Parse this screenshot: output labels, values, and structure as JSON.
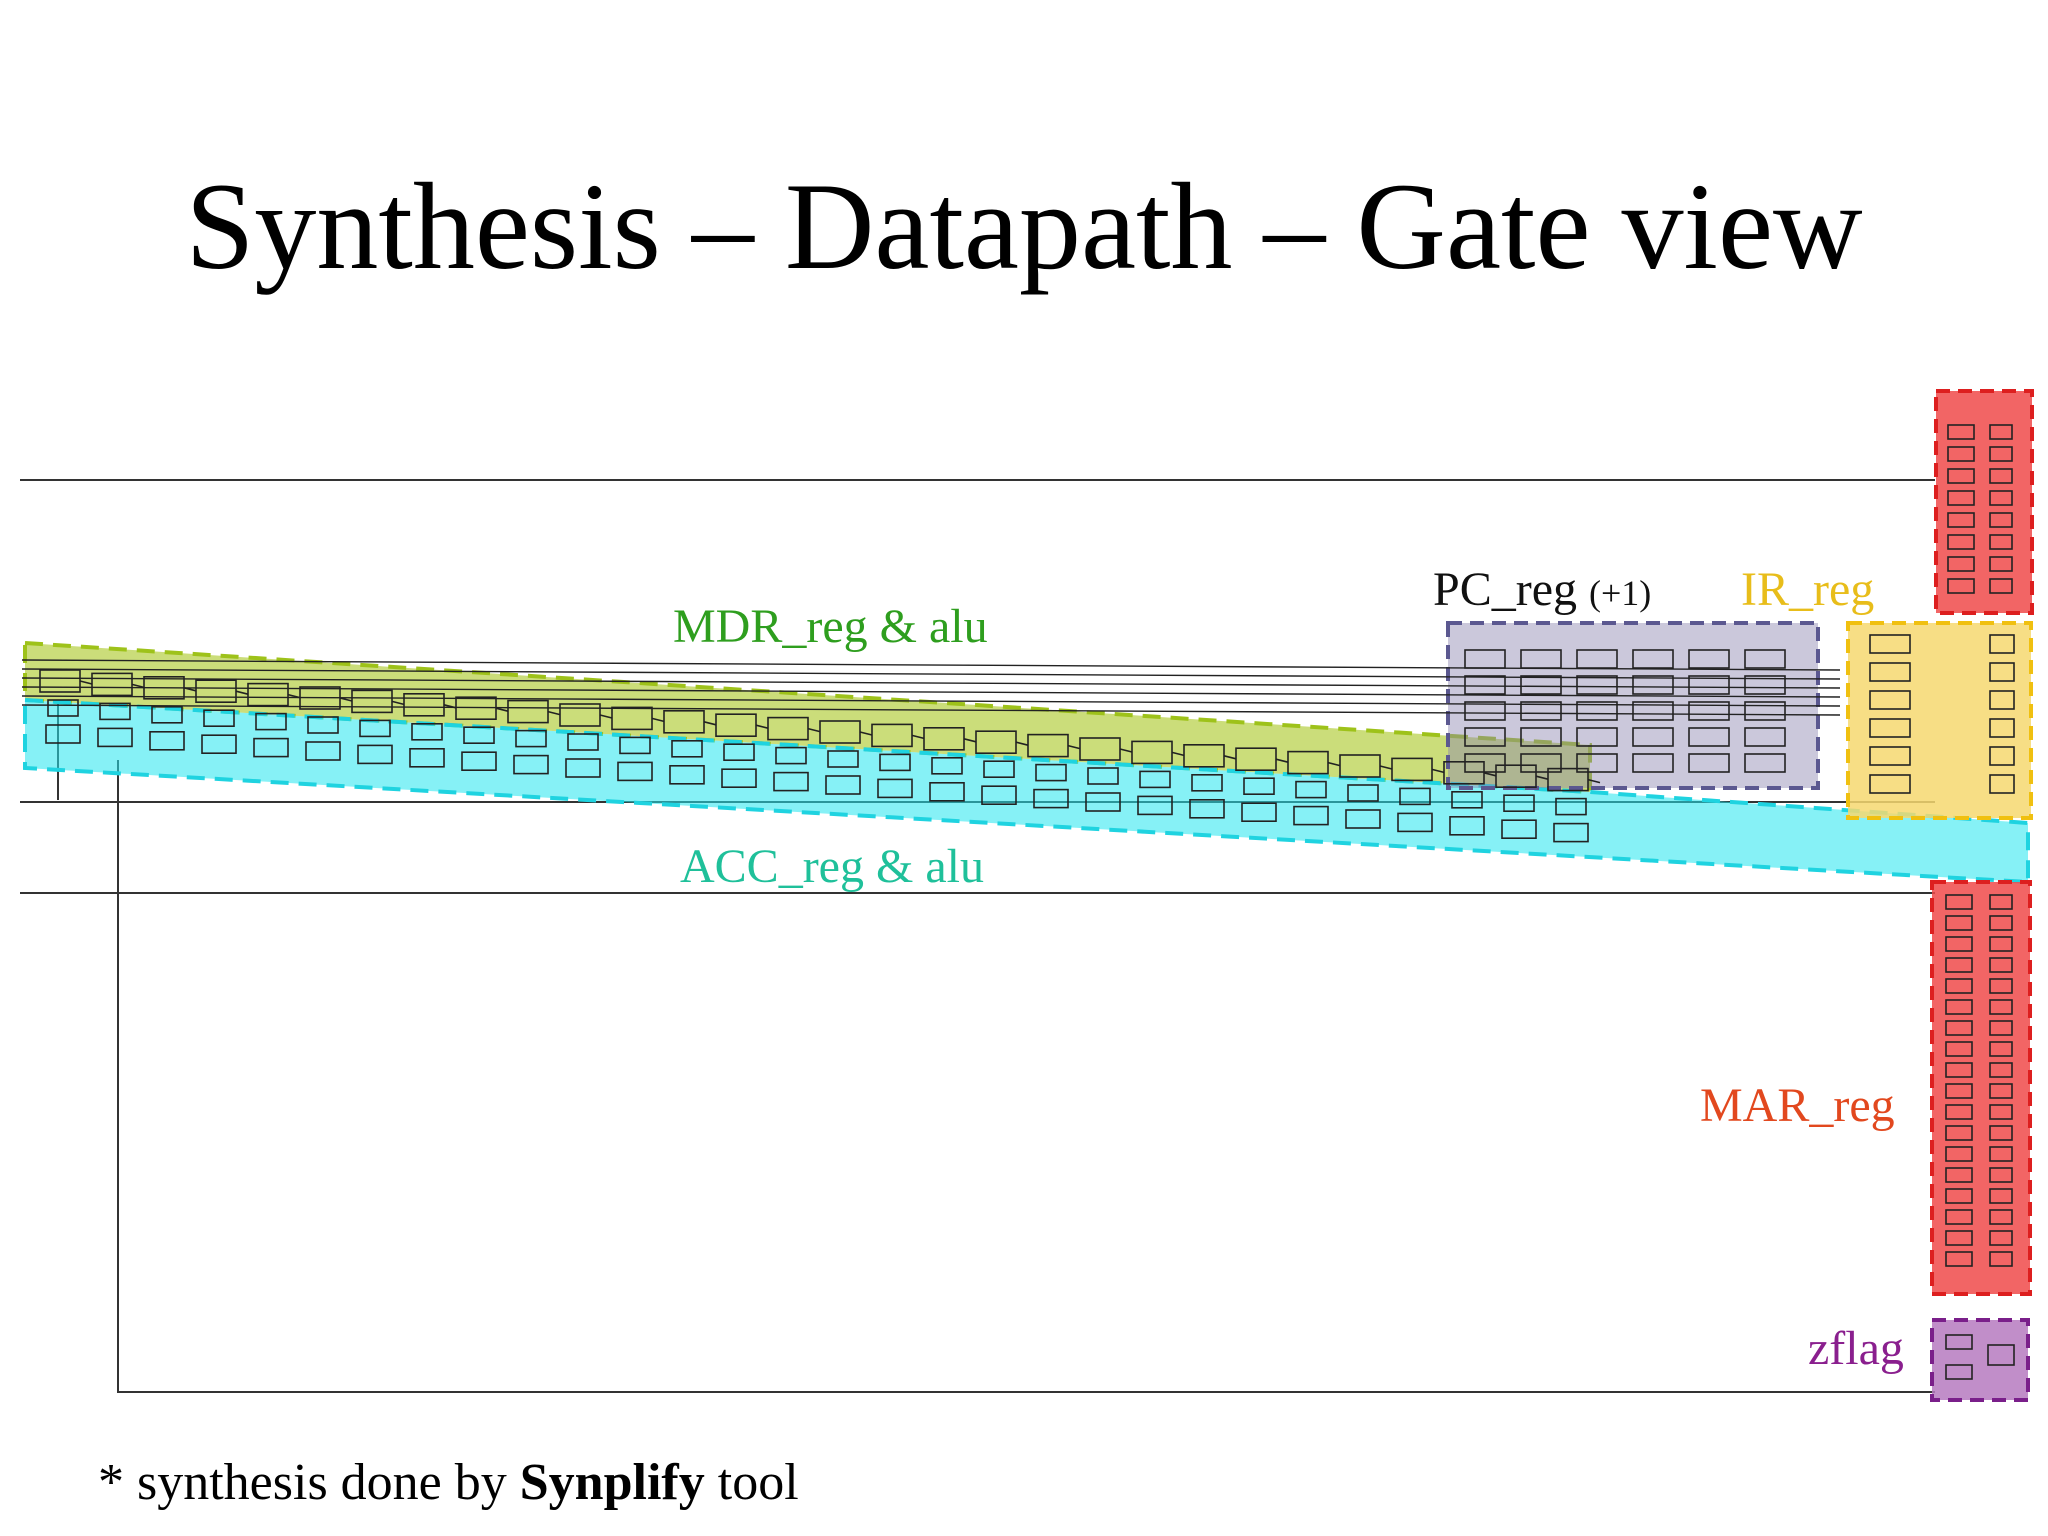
{
  "slide": {
    "title": "Synthesis – Datapath – Gate view"
  },
  "regions": {
    "mdr": {
      "label": "MDR_reg & alu",
      "color": "#2e9e1e",
      "fill": "#b5cf42",
      "stroke": "#9ec21a"
    },
    "acc": {
      "label": "ACC_reg & alu",
      "color": "#1fc09a",
      "fill": "#22e5ee",
      "stroke": "#1fd3e0"
    },
    "pc": {
      "label": "PC_reg",
      "suffix": "(+1)",
      "color": "#111111",
      "fill": "#8b86b0",
      "stroke": "#5b5890"
    },
    "ir": {
      "label": "IR_reg",
      "color": "#e8bd1a",
      "fill": "#f6d870",
      "stroke": "#f0c010"
    },
    "mar": {
      "label": "MAR_reg",
      "color": "#e2481e",
      "fill": "#f04a4a",
      "stroke": "#dd1f1f"
    },
    "zflag": {
      "label": "zflag",
      "color": "#8a1f8e",
      "fill": "#b67ac0",
      "stroke": "#7a1f8a"
    }
  },
  "footnote": {
    "prefix": "* synthesis done by",
    "tool": "Synplify",
    "suffix": "tool"
  }
}
